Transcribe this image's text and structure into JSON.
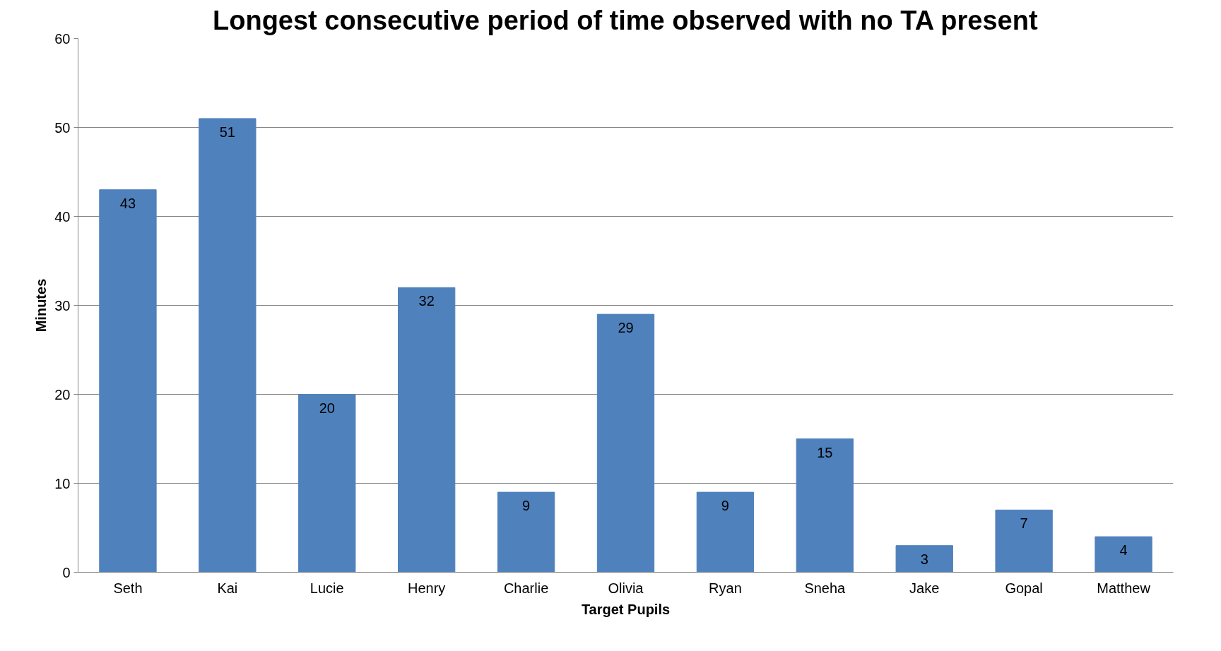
{
  "chart_data": {
    "type": "bar",
    "title": "Longest consecutive period of time observed with no TA present",
    "xlabel": "Target Pupils",
    "ylabel": "Minutes",
    "categories": [
      "Seth",
      "Kai",
      "Lucie",
      "Henry",
      "Charlie",
      "Olivia",
      "Ryan",
      "Sneha",
      "Jake",
      "Gopal",
      "Matthew"
    ],
    "values": [
      43,
      51,
      20,
      32,
      9,
      29,
      9,
      15,
      3,
      7,
      4
    ],
    "color": "#4f81bd",
    "ylim": [
      0,
      60
    ],
    "yticks": [
      0,
      10,
      20,
      30,
      40,
      50,
      60
    ],
    "grid": "y",
    "data_labels": true
  }
}
